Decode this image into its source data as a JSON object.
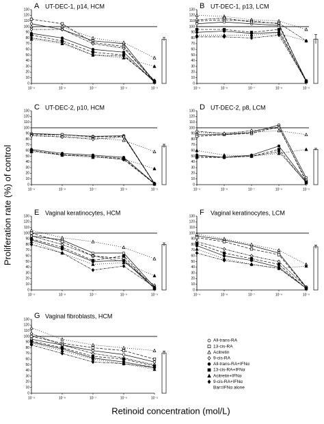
{
  "y_label": "Proliferation rate (%) of control",
  "x_label": "Retinoid concentration (mol/L)",
  "legend": {
    "items": [
      {
        "name": "All-trans-RA",
        "marker": "circle",
        "fill": "open",
        "dash": "none"
      },
      {
        "name": "13-cis-RA",
        "marker": "square",
        "fill": "open",
        "dash": "4 2"
      },
      {
        "name": "Acitretin",
        "marker": "triangle",
        "fill": "open",
        "dash": "1 2"
      },
      {
        "name": "9-cis-RA",
        "marker": "diamond",
        "fill": "open",
        "dash": "3 1 1 1"
      },
      {
        "name": "All-trans-RA+IFNα",
        "marker": "circle",
        "fill": "filled",
        "dash": "none"
      },
      {
        "name": "13-cis-RA+IFNα",
        "marker": "square",
        "fill": "filled",
        "dash": "4 2"
      },
      {
        "name": "Acitretin+IFNα",
        "marker": "triangle",
        "fill": "filled",
        "dash": "1 2"
      },
      {
        "name": "9-cis-RA+IFNα",
        "marker": "diamond",
        "fill": "filled",
        "dash": "3 1 1 1"
      }
    ],
    "note": "Bar=IFNα alone"
  },
  "chart_data": [
    {
      "type": "line",
      "label": "A",
      "title": "UT-DEC-1, p14, HCM",
      "x_scale": "log",
      "reference_line": 100,
      "xlim": [
        1e-09,
        1e-05
      ],
      "xticks": [
        {
          "value": 1e-09,
          "label": "10⁻⁹"
        },
        {
          "value": 1e-08,
          "label": "10⁻⁸"
        },
        {
          "value": 1e-07,
          "label": "10⁻⁷"
        },
        {
          "value": 1e-06,
          "label": "10⁻⁶"
        },
        {
          "value": 1e-05,
          "label": "10⁻⁵"
        }
      ],
      "x": [
        1e-09,
        1e-08,
        1e-07,
        1e-06,
        1e-05
      ],
      "ylim": [
        0,
        130
      ],
      "yticks": [
        0,
        10,
        20,
        30,
        40,
        50,
        60,
        70,
        80,
        90,
        100,
        110,
        120,
        130
      ],
      "series": [
        {
          "values": [
            105,
            95,
            75,
            70,
            3
          ]
        },
        {
          "values": [
            113,
            105,
            72,
            65,
            2
          ]
        },
        {
          "values": [
            100,
            100,
            80,
            72,
            45
          ]
        },
        {
          "values": [
            95,
            95,
            70,
            62,
            5
          ]
        },
        {
          "values": [
            88,
            80,
            60,
            55,
            2
          ]
        },
        {
          "values": [
            85,
            75,
            55,
            50,
            3
          ]
        },
        {
          "values": [
            78,
            70,
            50,
            45,
            30
          ]
        },
        {
          "values": [
            80,
            72,
            50,
            48,
            5
          ]
        }
      ],
      "bar": {
        "value": 78,
        "error": 3
      }
    },
    {
      "type": "line",
      "label": "B",
      "title": "UT-DEC-1, p13, LCM",
      "x_scale": "log",
      "reference_line": 100,
      "xlim": [
        1e-09,
        1e-05
      ],
      "xticks": [
        {
          "value": 1e-09,
          "label": "10⁻⁹"
        },
        {
          "value": 1e-08,
          "label": "10⁻⁸"
        },
        {
          "value": 1e-07,
          "label": "10⁻⁷"
        },
        {
          "value": 1e-06,
          "label": "10⁻⁶"
        },
        {
          "value": 1e-05,
          "label": "10⁻⁵"
        }
      ],
      "x": [
        1e-09,
        1e-08,
        1e-07,
        1e-06,
        1e-05
      ],
      "ylim": [
        0,
        130
      ],
      "yticks": [
        0,
        10,
        20,
        30,
        40,
        50,
        60,
        70,
        80,
        90,
        100,
        110,
        120,
        130
      ],
      "series": [
        {
          "values": [
            105,
            108,
            105,
            102,
            5
          ]
        },
        {
          "values": [
            110,
            112,
            110,
            105,
            3
          ]
        },
        {
          "values": [
            120,
            118,
            112,
            110,
            95
          ]
        },
        {
          "values": [
            112,
            115,
            108,
            106,
            75
          ]
        },
        {
          "values": [
            90,
            92,
            88,
            90,
            5
          ]
        },
        {
          "values": [
            95,
            95,
            90,
            95,
            3
          ]
        },
        {
          "values": [
            85,
            85,
            85,
            88,
            75
          ]
        },
        {
          "values": [
            82,
            82,
            80,
            85,
            4
          ]
        }
      ],
      "bar": {
        "value": 78,
        "error": 8
      }
    },
    {
      "type": "line",
      "label": "C",
      "title": "UT-DEC-2, p10, HCM",
      "x_scale": "log",
      "reference_line": 100,
      "xlim": [
        1e-09,
        1e-05
      ],
      "xticks": [
        {
          "value": 1e-09,
          "label": "10⁻⁹"
        },
        {
          "value": 1e-08,
          "label": "10⁻⁸"
        },
        {
          "value": 1e-07,
          "label": "10⁻⁷"
        },
        {
          "value": 1e-06,
          "label": "10⁻⁶"
        },
        {
          "value": 1e-05,
          "label": "10⁻⁵"
        }
      ],
      "x": [
        1e-09,
        1e-08,
        1e-07,
        1e-06,
        1e-05
      ],
      "ylim": [
        0,
        130
      ],
      "yticks": [
        0,
        10,
        20,
        30,
        40,
        50,
        60,
        70,
        80,
        90,
        100,
        110,
        120,
        130
      ],
      "series": [
        {
          "values": [
            90,
            88,
            85,
            86,
            2
          ]
        },
        {
          "values": [
            88,
            88,
            84,
            85,
            1
          ]
        },
        {
          "values": [
            88,
            85,
            82,
            78,
            58
          ]
        },
        {
          "values": [
            86,
            84,
            80,
            84,
            2
          ]
        },
        {
          "values": [
            62,
            55,
            52,
            48,
            2
          ]
        },
        {
          "values": [
            60,
            53,
            50,
            46,
            1
          ]
        },
        {
          "values": [
            58,
            52,
            48,
            45,
            28
          ]
        },
        {
          "values": [
            60,
            52,
            50,
            44,
            2
          ]
        }
      ],
      "bar": {
        "value": 68,
        "error": 3
      }
    },
    {
      "type": "line",
      "label": "D",
      "title": "UT-DEC-2, p8, LCM",
      "x_scale": "log",
      "reference_line": 100,
      "xlim": [
        1e-09,
        1e-05
      ],
      "xticks": [
        {
          "value": 1e-09,
          "label": "10⁻⁹"
        },
        {
          "value": 1e-08,
          "label": "10⁻⁸"
        },
        {
          "value": 1e-07,
          "label": "10⁻⁷"
        },
        {
          "value": 1e-06,
          "label": "10⁻⁶"
        },
        {
          "value": 1e-05,
          "label": "10⁻⁵"
        }
      ],
      "x": [
        1e-09,
        1e-08,
        1e-07,
        1e-06,
        1e-05
      ],
      "ylim": [
        0,
        130
      ],
      "yticks": [
        0,
        10,
        20,
        30,
        40,
        50,
        60,
        70,
        80,
        90,
        100,
        110,
        120,
        130
      ],
      "series": [
        {
          "values": [
            88,
            88,
            92,
            105,
            12
          ]
        },
        {
          "values": [
            85,
            88,
            90,
            102,
            5
          ]
        },
        {
          "values": [
            92,
            90,
            92,
            95,
            88
          ]
        },
        {
          "values": [
            94,
            90,
            95,
            100,
            8
          ]
        },
        {
          "values": [
            52,
            48,
            52,
            68,
            5
          ]
        },
        {
          "values": [
            48,
            48,
            50,
            62,
            3
          ]
        },
        {
          "values": [
            60,
            52,
            50,
            55,
            62
          ]
        },
        {
          "values": [
            50,
            48,
            50,
            58,
            4
          ]
        }
      ],
      "bar": {
        "value": 62,
        "error": 2
      }
    },
    {
      "type": "line",
      "label": "E",
      "title": "Vaginal keratinocytes, HCM",
      "x_scale": "log",
      "reference_line": 100,
      "xlim": [
        1e-09,
        1e-05
      ],
      "xticks": [
        {
          "value": 1e-09,
          "label": "10⁻⁹"
        },
        {
          "value": 1e-08,
          "label": "10⁻⁸"
        },
        {
          "value": 1e-07,
          "label": "10⁻⁷"
        },
        {
          "value": 1e-06,
          "label": "10⁻⁶"
        },
        {
          "value": 1e-05,
          "label": "10⁻⁵"
        }
      ],
      "x": [
        1e-09,
        1e-08,
        1e-07,
        1e-06,
        1e-05
      ],
      "ylim": [
        0,
        130
      ],
      "yticks": [
        0,
        10,
        20,
        30,
        40,
        50,
        60,
        70,
        80,
        90,
        100,
        110,
        120,
        130
      ],
      "series": [
        {
          "values": [
            95,
            88,
            65,
            65,
            5
          ]
        },
        {
          "values": [
            100,
            85,
            60,
            55,
            3
          ]
        },
        {
          "values": [
            105,
            92,
            85,
            75,
            55
          ]
        },
        {
          "values": [
            95,
            80,
            60,
            50,
            8
          ]
        },
        {
          "values": [
            88,
            72,
            50,
            52,
            3
          ]
        },
        {
          "values": [
            90,
            75,
            52,
            60,
            2
          ]
        },
        {
          "values": [
            85,
            65,
            45,
            48,
            25
          ]
        },
        {
          "values": [
            80,
            65,
            35,
            42,
            5
          ]
        }
      ],
      "bar": {
        "value": 80,
        "error": 3
      }
    },
    {
      "type": "line",
      "label": "F",
      "title": "Vaginal keratinocytes, LCM",
      "x_scale": "log",
      "reference_line": 100,
      "xlim": [
        1e-09,
        1e-05
      ],
      "xticks": [
        {
          "value": 1e-09,
          "label": "10⁻⁹"
        },
        {
          "value": 1e-08,
          "label": "10⁻⁸"
        },
        {
          "value": 1e-07,
          "label": "10⁻⁷"
        },
        {
          "value": 1e-06,
          "label": "10⁻⁶"
        },
        {
          "value": 1e-05,
          "label": "10⁻⁵"
        }
      ],
      "x": [
        1e-09,
        1e-08,
        1e-07,
        1e-06,
        1e-05
      ],
      "ylim": [
        0,
        130
      ],
      "yticks": [
        0,
        10,
        20,
        30,
        40,
        50,
        60,
        70,
        80,
        90,
        100,
        110,
        120,
        130
      ],
      "series": [
        {
          "values": [
            95,
            88,
            78,
            65,
            5
          ]
        },
        {
          "values": [
            92,
            85,
            72,
            62,
            4
          ]
        },
        {
          "values": [
            98,
            90,
            80,
            70,
            45
          ]
        },
        {
          "values": [
            85,
            72,
            60,
            50,
            5
          ]
        },
        {
          "values": [
            78,
            60,
            52,
            40,
            3
          ]
        },
        {
          "values": [
            82,
            65,
            55,
            45,
            2
          ]
        },
        {
          "values": [
            72,
            55,
            45,
            38,
            42
          ]
        },
        {
          "values": [
            65,
            52,
            45,
            38,
            3
          ]
        }
      ],
      "bar": {
        "value": 76,
        "error": 3
      }
    },
    {
      "type": "line",
      "label": "G",
      "title": "Vaginal fibroblasts, HCM",
      "x_scale": "log",
      "reference_line": 100,
      "xlim": [
        1e-09,
        1e-05
      ],
      "xticks": [
        {
          "value": 1e-09,
          "label": "10⁻⁹"
        },
        {
          "value": 1e-08,
          "label": "10⁻⁸"
        },
        {
          "value": 1e-07,
          "label": "10⁻⁷"
        },
        {
          "value": 1e-06,
          "label": "10⁻⁶"
        },
        {
          "value": 1e-05,
          "label": "10⁻⁵"
        }
      ],
      "x": [
        1e-09,
        1e-08,
        1e-07,
        1e-06,
        1e-05
      ],
      "ylim": [
        0,
        130
      ],
      "yticks": [
        0,
        10,
        20,
        30,
        40,
        50,
        60,
        70,
        80,
        90,
        100,
        110,
        120,
        130
      ],
      "series": [
        {
          "values": [
            95,
            85,
            75,
            68,
            55
          ]
        },
        {
          "values": [
            100,
            88,
            80,
            75,
            60
          ]
        },
        {
          "values": [
            115,
            95,
            85,
            80,
            75
          ]
        },
        {
          "values": [
            105,
            85,
            70,
            62,
            50
          ]
        },
        {
          "values": [
            90,
            78,
            62,
            55,
            45
          ]
        },
        {
          "values": [
            92,
            80,
            65,
            60,
            48
          ]
        },
        {
          "values": [
            88,
            75,
            60,
            52,
            42
          ]
        },
        {
          "values": [
            85,
            70,
            55,
            52,
            45
          ]
        }
      ],
      "bar": {
        "value": 71,
        "error": 3
      }
    }
  ]
}
